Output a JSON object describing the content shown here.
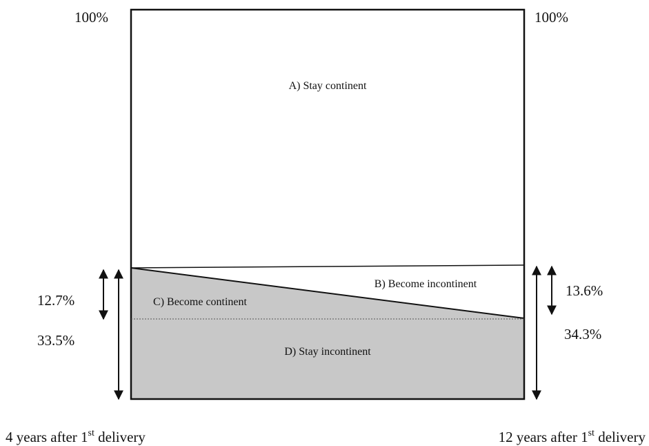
{
  "top_labels": {
    "left": "100%",
    "right": "100%"
  },
  "regions": {
    "a": "A) Stay continent",
    "b": "B) Become incontinent",
    "c": "C) Become continent",
    "d": "D) Stay incontinent"
  },
  "left_labels": {
    "inner": "12.7%",
    "outer": "33.5%"
  },
  "right_labels": {
    "inner": "13.6%",
    "outer": "34.3%"
  },
  "bottom_labels": {
    "left": {
      "main": "4 years after 1",
      "sup": "st",
      "rest": " delivery"
    },
    "right": {
      "main": "12 years after 1",
      "sup": "st",
      "rest": " delivery"
    }
  }
}
